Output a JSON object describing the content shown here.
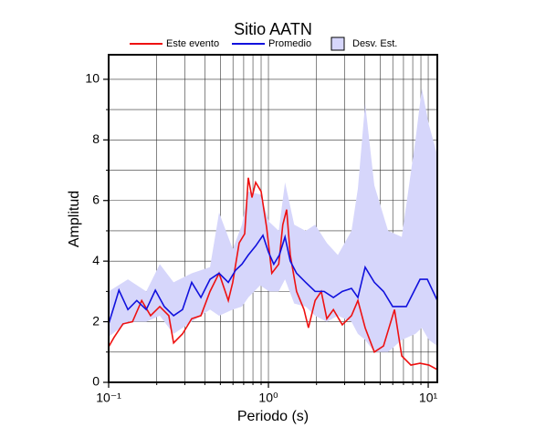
{
  "chart_data": {
    "type": "line",
    "title": "Sitio AATN",
    "xlabel": "Periodo (s)",
    "ylabel": "Amplitud",
    "xscale": "log",
    "grid": true,
    "xlim": [
      0.1,
      11.4
    ],
    "ylim": [
      0,
      10.81
    ],
    "xticks": [
      {
        "value": 0.1,
        "label": "10⁻¹"
      },
      {
        "value": 1,
        "label": "10⁰"
      },
      {
        "value": 10,
        "label": "10¹"
      }
    ],
    "xminor": [
      0.2,
      0.3,
      0.4,
      0.5,
      0.6,
      0.7,
      0.8,
      0.9,
      2,
      3,
      4,
      5,
      6,
      7,
      8,
      9
    ],
    "yticks": [
      0,
      2,
      4,
      6,
      8,
      10
    ],
    "yminor": [
      1,
      3,
      5,
      7,
      9
    ],
    "series": [
      {
        "name": "Desv. Est.",
        "kind": "band",
        "color": "#d6d6fb",
        "x": [
          0.1,
          0.132,
          0.172,
          0.209,
          0.255,
          0.331,
          0.431,
          0.491,
          0.598,
          0.683,
          0.748,
          0.888,
          1.01,
          1.16,
          1.27,
          1.45,
          1.71,
          1.96,
          2.32,
          2.72,
          3.31,
          3.63,
          4.03,
          4.6,
          5.61,
          6.83,
          8.32,
          9.12,
          10.1,
          11.4
        ],
        "lower": [
          1.5,
          2.0,
          2.0,
          2.2,
          1.6,
          2.0,
          2.4,
          2.2,
          2.4,
          2.5,
          2.8,
          3.2,
          3.0,
          3.0,
          3.4,
          2.6,
          2.5,
          2.2,
          2.0,
          2.2,
          2.0,
          1.6,
          1.4,
          1.0,
          1.0,
          1.4,
          1.6,
          1.8,
          1.4,
          1.2
        ],
        "upper": [
          3.0,
          3.4,
          3.0,
          3.9,
          3.3,
          3.6,
          3.8,
          5.6,
          4.4,
          5.2,
          6.3,
          6.2,
          5.3,
          5.0,
          6.6,
          5.2,
          5.0,
          5.2,
          4.6,
          4.2,
          5.0,
          6.4,
          9.2,
          6.5,
          5.0,
          4.8,
          8.0,
          9.7,
          8.5,
          7.5
        ]
      },
      {
        "name": "Este evento",
        "color": "#ee1111",
        "x": [
          0.1,
          0.108,
          0.123,
          0.141,
          0.161,
          0.183,
          0.209,
          0.238,
          0.255,
          0.29,
          0.331,
          0.378,
          0.431,
          0.491,
          0.561,
          0.598,
          0.656,
          0.71,
          0.748,
          0.789,
          0.832,
          0.9,
          0.975,
          1.05,
          1.16,
          1.23,
          1.3,
          1.37,
          1.5,
          1.67,
          1.78,
          1.96,
          2.14,
          2.32,
          2.55,
          2.9,
          3.31,
          3.63,
          4.03,
          4.6,
          5.25,
          6.15,
          6.83,
          7.79,
          8.89,
          10.1,
          11.4
        ],
        "values": [
          1.17,
          1.48,
          1.93,
          2.0,
          2.7,
          2.2,
          2.5,
          2.2,
          1.3,
          1.6,
          2.1,
          2.2,
          3.0,
          3.6,
          2.7,
          3.3,
          4.6,
          4.9,
          6.75,
          6.1,
          6.6,
          6.3,
          5.1,
          3.6,
          3.9,
          5.2,
          5.7,
          4.2,
          3.0,
          2.4,
          1.8,
          2.7,
          3.0,
          2.1,
          2.4,
          1.9,
          2.2,
          2.7,
          1.8,
          1.0,
          1.2,
          2.4,
          0.87,
          0.57,
          0.63,
          0.57,
          0.42
        ]
      },
      {
        "name": "Promedio",
        "color": "#1111dd",
        "x": [
          0.1,
          0.108,
          0.116,
          0.132,
          0.15,
          0.172,
          0.196,
          0.223,
          0.255,
          0.29,
          0.331,
          0.378,
          0.431,
          0.491,
          0.561,
          0.623,
          0.683,
          0.748,
          0.832,
          0.924,
          1,
          1.08,
          1.17,
          1.27,
          1.37,
          1.5,
          1.71,
          1.96,
          2.23,
          2.55,
          2.9,
          3.31,
          3.63,
          4.03,
          4.6,
          5.25,
          5.99,
          7.29,
          8.89,
          9.87,
          11.4
        ],
        "values": [
          1.93,
          2.5,
          3.04,
          2.4,
          2.7,
          2.4,
          3.04,
          2.5,
          2.2,
          2.4,
          3.3,
          2.8,
          3.4,
          3.6,
          3.3,
          3.7,
          3.9,
          4.2,
          4.5,
          4.85,
          4.3,
          3.9,
          4.2,
          4.8,
          4.0,
          3.6,
          3.3,
          3.0,
          3.0,
          2.8,
          3.0,
          3.1,
          2.8,
          3.8,
          3.3,
          3.0,
          2.5,
          2.5,
          3.4,
          3.4,
          2.7
        ]
      }
    ]
  }
}
